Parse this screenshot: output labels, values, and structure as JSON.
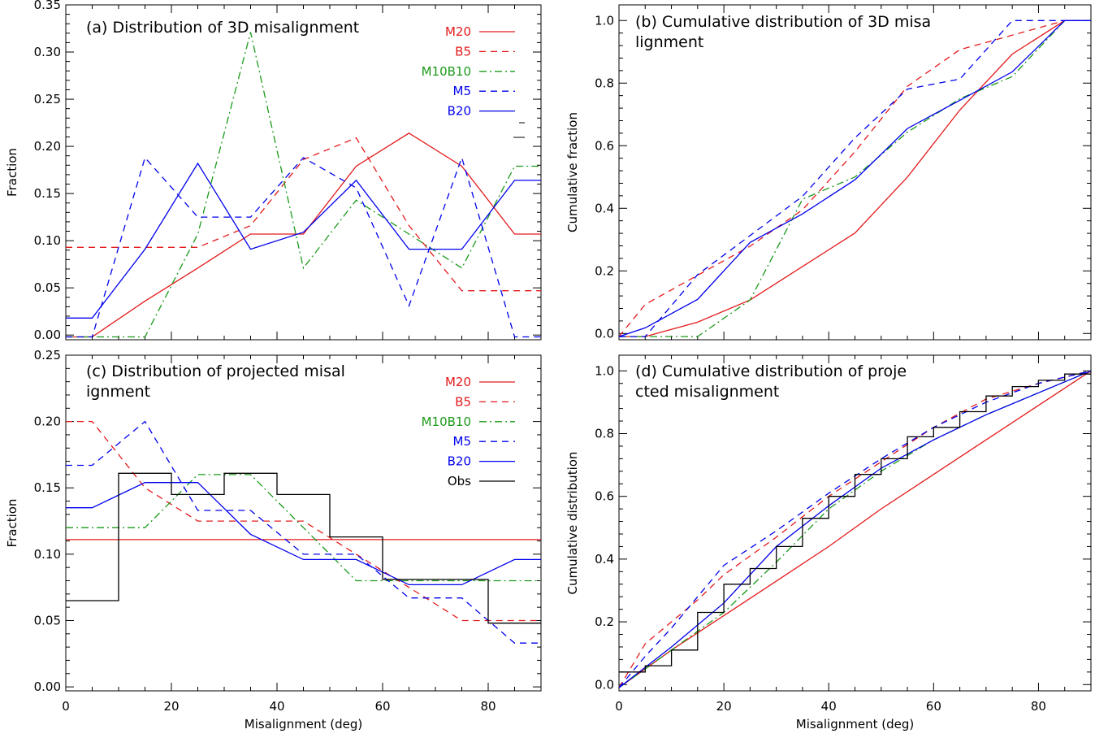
{
  "chart_data": [
    {
      "type": "line",
      "title": "(a) Distribution of 3D misalignment",
      "xlabel": "",
      "ylabel": "Fraction",
      "xlim": [
        0,
        90
      ],
      "ylim": [
        -0.005,
        0.35
      ],
      "xticks": [
        "",
        "",
        "",
        "",
        ""
      ],
      "yticks": [
        "0.00",
        "0.05",
        "0.10",
        "0.15",
        "0.20",
        "0.25",
        "0.30",
        "0.35"
      ],
      "legend_position": "top-right",
      "series": [
        {
          "name": "M20",
          "color": "#e41a1c",
          "style": "solid",
          "x": [
            0,
            5,
            15,
            25,
            35,
            45,
            55,
            65,
            75,
            85,
            90
          ],
          "y": [
            -0.002,
            -0.002,
            0.036,
            0.071,
            0.107,
            0.107,
            0.179,
            0.214,
            0.179,
            0.107,
            0.107
          ]
        },
        {
          "name": "B5",
          "color": "#e41a1c",
          "style": "dashed",
          "x": [
            0,
            5,
            15,
            25,
            35,
            45,
            55,
            65,
            75,
            85,
            90
          ],
          "y": [
            0.093,
            0.093,
            0.093,
            0.093,
            0.116,
            0.186,
            0.209,
            0.116,
            0.047,
            0.047,
            0.047
          ]
        },
        {
          "name": "M10B10",
          "color": "#1a9a1a",
          "style": "dashdot",
          "x": [
            0,
            5,
            15,
            25,
            35,
            45,
            55,
            65,
            75,
            85,
            90
          ],
          "y": [
            -0.002,
            -0.002,
            -0.002,
            0.107,
            0.321,
            0.071,
            0.143,
            0.107,
            0.071,
            0.179,
            0.179
          ]
        },
        {
          "name": "M5",
          "color": "#0000ee",
          "style": "dashed",
          "x": [
            0,
            5,
            15,
            25,
            35,
            45,
            55,
            65,
            75,
            85,
            90
          ],
          "y": [
            -0.002,
            -0.002,
            0.188,
            0.125,
            0.125,
            0.188,
            0.156,
            0.031,
            0.188,
            -0.002,
            -0.002
          ]
        },
        {
          "name": "B20",
          "color": "#0000ee",
          "style": "solid",
          "x": [
            0,
            5,
            15,
            25,
            35,
            45,
            55,
            65,
            75,
            85,
            90
          ],
          "y": [
            0.018,
            0.018,
            0.091,
            0.182,
            0.091,
            0.109,
            0.164,
            0.091,
            0.091,
            0.164,
            0.164
          ]
        }
      ]
    },
    {
      "type": "line",
      "title": "(b) Cumulative distribution of 3D misalignment",
      "xlabel": "",
      "ylabel": "Cumulative fraction",
      "xlim": [
        0,
        90
      ],
      "ylim": [
        -0.02,
        1.05
      ],
      "xticks": [
        "",
        "",
        "",
        "",
        ""
      ],
      "yticks": [
        "0.0",
        "0.2",
        "0.4",
        "0.6",
        "0.8",
        "1.0"
      ],
      "series": [
        {
          "name": "M20",
          "color": "#e41a1c",
          "style": "solid",
          "x": [
            0,
            5,
            15,
            25,
            35,
            45,
            55,
            65,
            75,
            85,
            90
          ],
          "y": [
            -0.01,
            -0.01,
            0.036,
            0.107,
            0.214,
            0.321,
            0.5,
            0.714,
            0.893,
            1.0,
            1.0
          ]
        },
        {
          "name": "B5",
          "color": "#e41a1c",
          "style": "dashed",
          "x": [
            0,
            5,
            15,
            25,
            35,
            45,
            55,
            65,
            75,
            85,
            90
          ],
          "y": [
            -0.01,
            0.093,
            0.186,
            0.279,
            0.395,
            0.581,
            0.79,
            0.907,
            0.953,
            1.0,
            1.0
          ]
        },
        {
          "name": "M10B10",
          "color": "#1a9a1a",
          "style": "dashdot",
          "x": [
            0,
            5,
            15,
            25,
            35,
            45,
            55,
            65,
            75,
            85,
            90
          ],
          "y": [
            -0.01,
            -0.01,
            -0.01,
            0.107,
            0.429,
            0.5,
            0.643,
            0.75,
            0.821,
            1.0,
            1.0
          ]
        },
        {
          "name": "M5",
          "color": "#0000ee",
          "style": "dashed",
          "x": [
            0,
            5,
            15,
            25,
            35,
            45,
            55,
            65,
            75,
            85,
            90
          ],
          "y": [
            -0.01,
            -0.01,
            0.188,
            0.313,
            0.438,
            0.625,
            0.781,
            0.813,
            1.0,
            1.0,
            1.0
          ]
        },
        {
          "name": "B20",
          "color": "#0000ee",
          "style": "solid",
          "x": [
            0,
            5,
            15,
            25,
            35,
            45,
            55,
            65,
            75,
            85,
            90
          ],
          "y": [
            -0.01,
            0.018,
            0.109,
            0.291,
            0.382,
            0.491,
            0.655,
            0.745,
            0.836,
            1.0,
            1.0
          ]
        }
      ]
    },
    {
      "type": "line",
      "title": "(c) Distribution of projected misalignment",
      "xlabel": "Misalignment (deg)",
      "ylabel": "Fraction",
      "xlim": [
        0,
        90
      ],
      "ylim": [
        -0.003,
        0.25
      ],
      "xticks": [
        "0",
        "20",
        "40",
        "60",
        "80"
      ],
      "yticks": [
        "0.00",
        "0.05",
        "0.10",
        "0.15",
        "0.20",
        "0.25"
      ],
      "legend_position": "top-right",
      "series": [
        {
          "name": "M20",
          "color": "#e41a1c",
          "style": "solid",
          "x": [
            0,
            90
          ],
          "y": [
            0.111,
            0.111
          ]
        },
        {
          "name": "B5",
          "color": "#e41a1c",
          "style": "dashed",
          "x": [
            0,
            5,
            15,
            25,
            35,
            45,
            55,
            65,
            75,
            85,
            90
          ],
          "y": [
            0.2,
            0.2,
            0.15,
            0.125,
            0.125,
            0.125,
            0.1,
            0.075,
            0.05,
            0.05,
            0.05
          ]
        },
        {
          "name": "M10B10",
          "color": "#1a9a1a",
          "style": "dashdot",
          "x": [
            0,
            5,
            15,
            25,
            35,
            45,
            55,
            65,
            75,
            85,
            90
          ],
          "y": [
            0.12,
            0.12,
            0.12,
            0.16,
            0.16,
            0.12,
            0.08,
            0.08,
            0.08,
            0.08,
            0.08
          ]
        },
        {
          "name": "M5",
          "color": "#0000ee",
          "style": "dashed",
          "x": [
            0,
            5,
            15,
            25,
            35,
            45,
            55,
            65,
            75,
            85,
            90
          ],
          "y": [
            0.167,
            0.167,
            0.2,
            0.133,
            0.133,
            0.1,
            0.1,
            0.067,
            0.067,
            0.033,
            0.033
          ]
        },
        {
          "name": "B20",
          "color": "#0000ee",
          "style": "solid",
          "x": [
            0,
            5,
            15,
            25,
            35,
            45,
            55,
            65,
            75,
            85,
            90
          ],
          "y": [
            0.135,
            0.135,
            0.154,
            0.154,
            0.115,
            0.096,
            0.096,
            0.077,
            0.077,
            0.096,
            0.096
          ]
        },
        {
          "name": "Obs",
          "color": "#000000",
          "style": "step",
          "x": [
            0,
            10,
            20,
            30,
            40,
            50,
            60,
            70,
            80,
            90
          ],
          "y": [
            0.065,
            0.161,
            0.145,
            0.161,
            0.145,
            0.113,
            0.081,
            0.081,
            0.048,
            0.048
          ]
        }
      ]
    },
    {
      "type": "line",
      "title": "(d) Cumulative distribution of projected misalignment",
      "xlabel": "Misalignment (deg)",
      "ylabel": "Cumulative distribution",
      "xlim": [
        0,
        90
      ],
      "ylim": [
        -0.02,
        1.05
      ],
      "xticks": [
        "0",
        "20",
        "40",
        "60",
        "80"
      ],
      "yticks": [
        "0.0",
        "0.2",
        "0.4",
        "0.6",
        "0.8",
        "1.0"
      ],
      "series": [
        {
          "name": "M20",
          "color": "#e41a1c",
          "style": "solid",
          "x": [
            0,
            10,
            20,
            30,
            40,
            50,
            60,
            70,
            80,
            90
          ],
          "y": [
            -0.01,
            0.11,
            0.22,
            0.33,
            0.44,
            0.56,
            0.67,
            0.78,
            0.89,
            1.0
          ]
        },
        {
          "name": "B5",
          "color": "#e41a1c",
          "style": "dashed",
          "x": [
            0,
            5,
            10,
            15,
            20,
            30,
            40,
            50,
            60,
            70,
            80,
            90
          ],
          "y": [
            -0.01,
            0.13,
            0.2,
            0.27,
            0.35,
            0.47,
            0.6,
            0.71,
            0.82,
            0.91,
            0.96,
            1.0
          ]
        },
        {
          "name": "M10B10",
          "color": "#1a9a1a",
          "style": "dashdot",
          "x": [
            0,
            10,
            20,
            30,
            40,
            50,
            60,
            70,
            80,
            90
          ],
          "y": [
            -0.01,
            0.11,
            0.23,
            0.39,
            0.56,
            0.68,
            0.78,
            0.86,
            0.93,
            1.0
          ]
        },
        {
          "name": "M5",
          "color": "#0000ee",
          "style": "dashed",
          "x": [
            0,
            5,
            10,
            15,
            20,
            30,
            40,
            50,
            60,
            70,
            80,
            90
          ],
          "y": [
            -0.01,
            0.09,
            0.18,
            0.28,
            0.38,
            0.49,
            0.61,
            0.72,
            0.82,
            0.9,
            0.96,
            1.0
          ]
        },
        {
          "name": "B20",
          "color": "#0000ee",
          "style": "solid",
          "x": [
            0,
            10,
            20,
            30,
            40,
            50,
            60,
            70,
            80,
            90
          ],
          "y": [
            -0.01,
            0.12,
            0.26,
            0.44,
            0.57,
            0.69,
            0.78,
            0.86,
            0.93,
            1.0
          ]
        },
        {
          "name": "Obs",
          "color": "#000000",
          "style": "step",
          "x": [
            0,
            5,
            10,
            15,
            20,
            25,
            30,
            35,
            40,
            45,
            50,
            55,
            60,
            65,
            70,
            75,
            80,
            85,
            90
          ],
          "y": [
            0.04,
            0.06,
            0.11,
            0.23,
            0.32,
            0.37,
            0.44,
            0.53,
            0.6,
            0.67,
            0.72,
            0.79,
            0.82,
            0.87,
            0.92,
            0.95,
            0.97,
            0.99,
            1.0
          ]
        }
      ]
    }
  ]
}
